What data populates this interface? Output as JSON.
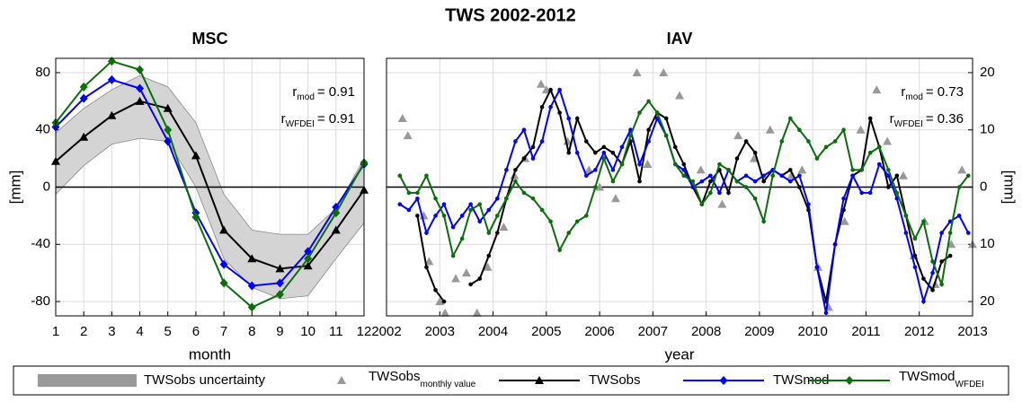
{
  "title": "TWS 2002-2012",
  "legend": {
    "position": "bottom"
  },
  "chart_data": [
    {
      "type": "line",
      "title": "MSC",
      "xlabel": "month",
      "ylabel": "[mm]",
      "yaxis_side": "left",
      "x": [
        1,
        2,
        3,
        4,
        5,
        6,
        7,
        8,
        9,
        10,
        11,
        12
      ],
      "xlim": [
        1,
        12
      ],
      "xticks": [
        1,
        2,
        3,
        4,
        5,
        6,
        7,
        8,
        9,
        10,
        11,
        12
      ],
      "ylim": [
        -90,
        90
      ],
      "yticks": [
        -80,
        -40,
        0,
        40,
        80
      ],
      "grid": true,
      "zero_line": true,
      "band": {
        "name": "TWSobs uncertainty",
        "color": "#d4d4d4",
        "upper": [
          38,
          55,
          68,
          78,
          70,
          45,
          -5,
          -30,
          -33,
          -33,
          -15,
          20
        ],
        "lower": [
          -5,
          15,
          30,
          34,
          32,
          0,
          -50,
          -70,
          -78,
          -76,
          -50,
          -25
        ]
      },
      "series": [
        {
          "color": "#000000",
          "marker": "triangle",
          "values": [
            18,
            35,
            50,
            60,
            55,
            22,
            -30,
            -50,
            -57,
            -55,
            -30,
            -2
          ]
        },
        {
          "color": "#0000ff",
          "marker": "diamond",
          "values": [
            42,
            62,
            75,
            69,
            32,
            -18,
            -54,
            -69,
            -67,
            -45,
            -14,
            16
          ]
        },
        {
          "color": "#0a6e0a",
          "marker": "diamond",
          "values": [
            45,
            70,
            88,
            82,
            40,
            -21,
            -67,
            -84,
            -75,
            -50,
            -18,
            17
          ]
        }
      ],
      "annotations": [
        {
          "base": "r",
          "sub": "mod",
          "text": "= 0.91"
        },
        {
          "base": "r",
          "sub": "WFDEI",
          "text": "= 0.91"
        }
      ]
    },
    {
      "type": "line",
      "title": "IAV",
      "xlabel": "year",
      "ylabel": "[mm]",
      "yaxis_side": "right",
      "x": [
        2002.25,
        2002.42,
        2002.58,
        2002.75,
        2002.92,
        2003.08,
        2003.25,
        2003.42,
        2003.58,
        2003.75,
        2003.92,
        2004.08,
        2004.25,
        2004.42,
        2004.58,
        2004.75,
        2004.92,
        2005.08,
        2005.25,
        2005.42,
        2005.58,
        2005.75,
        2005.92,
        2006.08,
        2006.25,
        2006.42,
        2006.58,
        2006.75,
        2006.92,
        2007.08,
        2007.25,
        2007.42,
        2007.58,
        2007.75,
        2007.92,
        2008.08,
        2008.25,
        2008.42,
        2008.58,
        2008.75,
        2008.92,
        2009.08,
        2009.25,
        2009.42,
        2009.58,
        2009.75,
        2009.92,
        2010.08,
        2010.25,
        2010.42,
        2010.58,
        2010.75,
        2010.92,
        2011.08,
        2011.25,
        2011.42,
        2011.58,
        2011.75,
        2011.92,
        2012.08,
        2012.25,
        2012.42,
        2012.58,
        2012.75,
        2012.92
      ],
      "xlim": [
        2002,
        2013
      ],
      "xticks": [
        2002,
        2003,
        2004,
        2005,
        2006,
        2007,
        2008,
        2009,
        2010,
        2011,
        2012,
        2013
      ],
      "ylim": [
        -22.5,
        22.5
      ],
      "yticks": [
        {
          "value": -20,
          "label": "20"
        },
        {
          "value": -10,
          "label": "10"
        },
        0,
        10,
        20
      ],
      "grid": true,
      "zero_line": true,
      "scatter": {
        "name": "TWSobs",
        "name_sub": "monthly value",
        "color": "#999999",
        "marker": "triangle",
        "x": [
          2002.3,
          2002.4,
          2002.7,
          2002.8,
          2003.0,
          2003.1,
          2003.3,
          2003.5,
          2003.7,
          2003.9,
          2004.2,
          2004.4,
          2004.6,
          2004.9,
          2005.0,
          2005.4,
          2005.8,
          2006.0,
          2006.3,
          2006.7,
          2006.9,
          2007.2,
          2007.5,
          2007.9,
          2008.3,
          2008.6,
          2008.9,
          2009.2,
          2009.6,
          2009.8,
          2010.1,
          2010.3,
          2010.6,
          2010.9,
          2011.2,
          2011.4,
          2011.7,
          2011.9,
          2012.1,
          2012.3,
          2012.6,
          2012.8,
          2013.0
        ],
        "values": [
          12,
          9,
          -5,
          -13,
          -20,
          -22,
          -16,
          -15,
          -22,
          -14,
          -7,
          2,
          5,
          18,
          17,
          8,
          3,
          0,
          -2,
          20,
          4,
          20,
          16,
          3,
          -3,
          9,
          5,
          10,
          2,
          3,
          -14,
          -21,
          -6,
          10,
          17,
          8,
          2,
          -12,
          -6,
          -17,
          -10,
          3,
          -10
        ]
      },
      "series": [
        {
          "name": "TWSobs",
          "color": "#000000",
          "marker": "dot",
          "values": [
            null,
            null,
            -5,
            -14,
            -18,
            -20,
            null,
            null,
            -17,
            -16,
            -12,
            -8,
            -2,
            3,
            5,
            7,
            14,
            17,
            13,
            6,
            12,
            8,
            6,
            7,
            6,
            4,
            8,
            1,
            10,
            13,
            12,
            7,
            4,
            0,
            -3,
            1,
            3,
            -1,
            5,
            8,
            6,
            1,
            3,
            2,
            3,
            0,
            -4,
            -14,
            -20,
            -10,
            -4,
            2,
            3,
            12,
            7,
            0,
            2,
            -5,
            -12,
            -16,
            -18,
            -13,
            -12,
            null,
            null
          ]
        },
        {
          "name": "TWSmod",
          "color": "#0000ff",
          "marker": "dot",
          "values": [
            -3,
            -4,
            -2,
            -8,
            -5,
            -3,
            -7,
            -5,
            -3,
            -6,
            -4,
            -2,
            3,
            8,
            10,
            5,
            8,
            14,
            17,
            12,
            6,
            2,
            3,
            6,
            3,
            7,
            10,
            4,
            8,
            12,
            9,
            4,
            3,
            0,
            1,
            2,
            -1,
            3,
            1,
            2,
            1,
            2,
            3,
            2,
            1,
            2,
            -3,
            -14,
            -22,
            -10,
            -2,
            2,
            -1,
            -1,
            4,
            2,
            -2,
            -8,
            -14,
            -20,
            -15,
            -8,
            -6,
            -5,
            -8
          ]
        },
        {
          "name": "TWSmod",
          "name_sub": "WFDEI",
          "color": "#0a6e0a",
          "marker": "dot",
          "values": [
            2,
            -1,
            -1,
            2,
            -2,
            -5,
            -12,
            -9,
            -4,
            -3,
            -8,
            -5,
            -2,
            1,
            -1,
            -2,
            -4,
            -6,
            -11,
            -8,
            -6,
            -5,
            0,
            5,
            1,
            4,
            9,
            13,
            15,
            13,
            9,
            4,
            2,
            1,
            -3,
            -1,
            4,
            3,
            1,
            0,
            -2,
            -6,
            2,
            8,
            12,
            10,
            8,
            5,
            7,
            8,
            10,
            3,
            3,
            6,
            7,
            3,
            -1,
            -5,
            -9,
            -6,
            -13,
            -17,
            -8,
            0,
            2
          ]
        }
      ],
      "annotations": [
        {
          "base": "r",
          "sub": "mod",
          "text": "= 0.73"
        },
        {
          "base": "r",
          "sub": "WFDEI",
          "text": "= 0.36"
        }
      ]
    }
  ]
}
